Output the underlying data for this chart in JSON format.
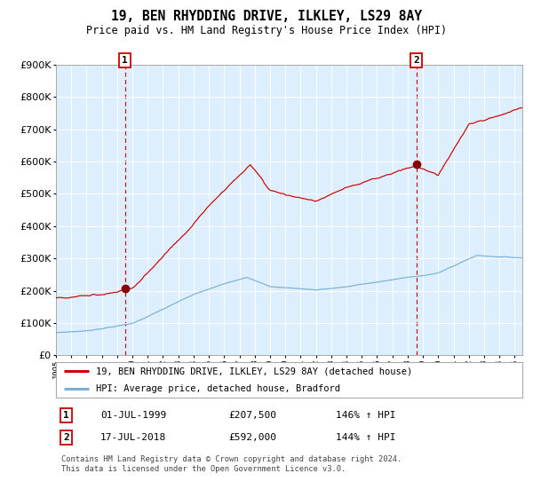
{
  "title": "19, BEN RHYDDING DRIVE, ILKLEY, LS29 8AY",
  "subtitle": "Price paid vs. HM Land Registry's House Price Index (HPI)",
  "legend_line1": "19, BEN RHYDDING DRIVE, ILKLEY, LS29 8AY (detached house)",
  "legend_line2": "HPI: Average price, detached house, Bradford",
  "annotation1_date": "01-JUL-1999",
  "annotation1_price": "£207,500",
  "annotation1_hpi": "146% ↑ HPI",
  "annotation2_date": "17-JUL-2018",
  "annotation2_price": "£592,000",
  "annotation2_hpi": "144% ↑ HPI",
  "footnote_line1": "Contains HM Land Registry data © Crown copyright and database right 2024.",
  "footnote_line2": "This data is licensed under the Open Government Licence v3.0.",
  "sale1_year": 1999.5,
  "sale1_value": 207500,
  "sale2_year": 2018.54,
  "sale2_value": 592000,
  "red_color": "#cc0000",
  "blue_color": "#7ab0d4",
  "plot_bg_color": "#ddeeff",
  "fig_bg_color": "#ffffff",
  "grid_color": "#ffffff",
  "ylim_max": 900000,
  "ylim_min": 0,
  "xlim_min": 1995,
  "xlim_max": 2025.5
}
